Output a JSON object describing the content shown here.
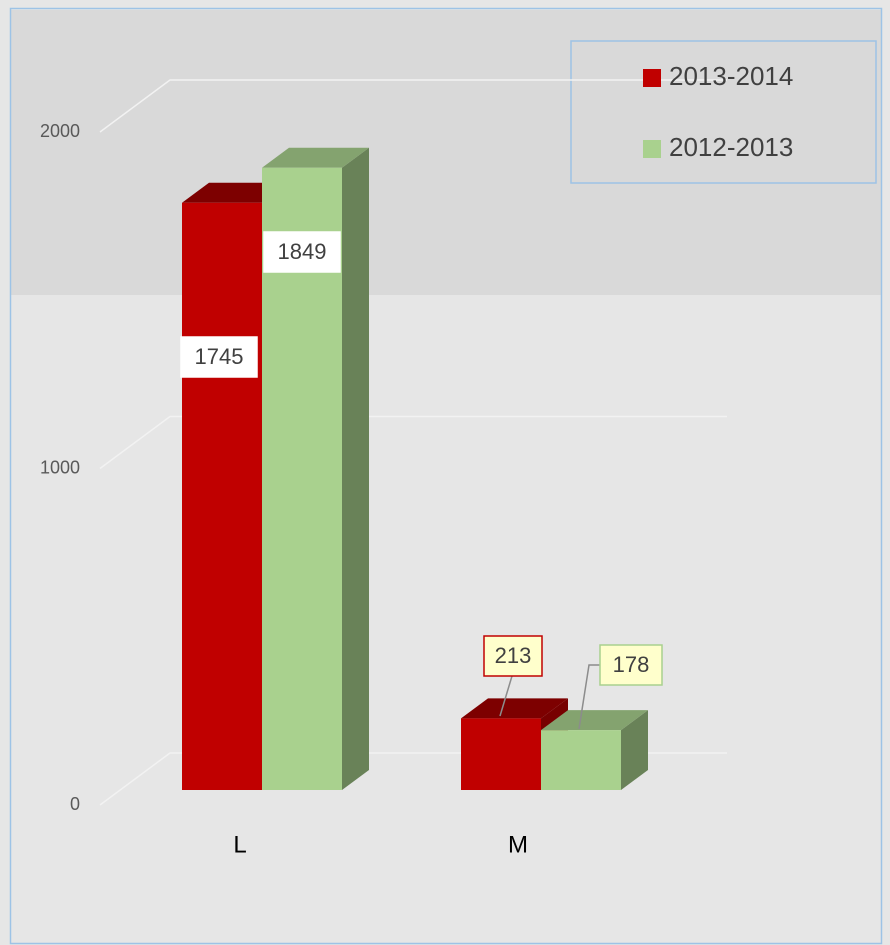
{
  "chart_data": {
    "type": "bar3d",
    "categories": [
      "L",
      "M"
    ],
    "series": [
      {
        "name": "2013-2014",
        "color": "#c00000",
        "values": [
          1745,
          213
        ]
      },
      {
        "name": "2012-2013",
        "color": "#a9d18e",
        "values": [
          1849,
          178
        ]
      }
    ],
    "ylim": [
      0,
      2000
    ],
    "yticks": [
      0,
      1000,
      2000
    ],
    "grid": true,
    "legend": "top-right"
  }
}
